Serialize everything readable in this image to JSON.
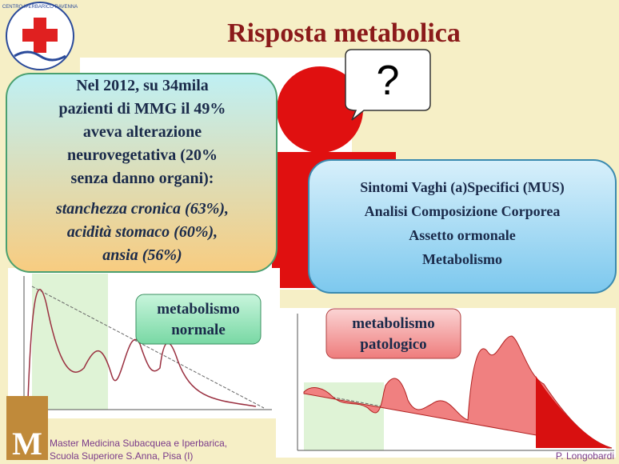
{
  "logo": {
    "text": "CENTRO IPERBARICO RAVENNA"
  },
  "title": "Risposta metabolica",
  "bubble": "?",
  "box_left": {
    "lines": [
      "Nel 2012, su 34mila",
      "pazienti  di  MMG il 49%",
      "aveva alterazione",
      "neurovegetativa (20%",
      "senza danno  organi):"
    ],
    "italic_lines": [
      "stanchezza cronica (63%),",
      "acidità stomaco (60%),",
      "ansia (56%)"
    ]
  },
  "box_right": {
    "lines": [
      "Sintomi  Vaghi  (a)Specifici  (MUS)",
      "Analisi  Composizione  Corporea",
      "Assetto ormonale",
      "Metabolismo"
    ]
  },
  "label_normal": [
    "metabolismo",
    "normale"
  ],
  "label_pathologic": [
    "metabolismo",
    "patologico"
  ],
  "footer": {
    "lines": [
      "Master Medicina Subacquea e Iperbarica,",
      "Scuola Superiore S.Anna, Pisa (I)"
    ],
    "author": "P. Longobardi"
  }
}
